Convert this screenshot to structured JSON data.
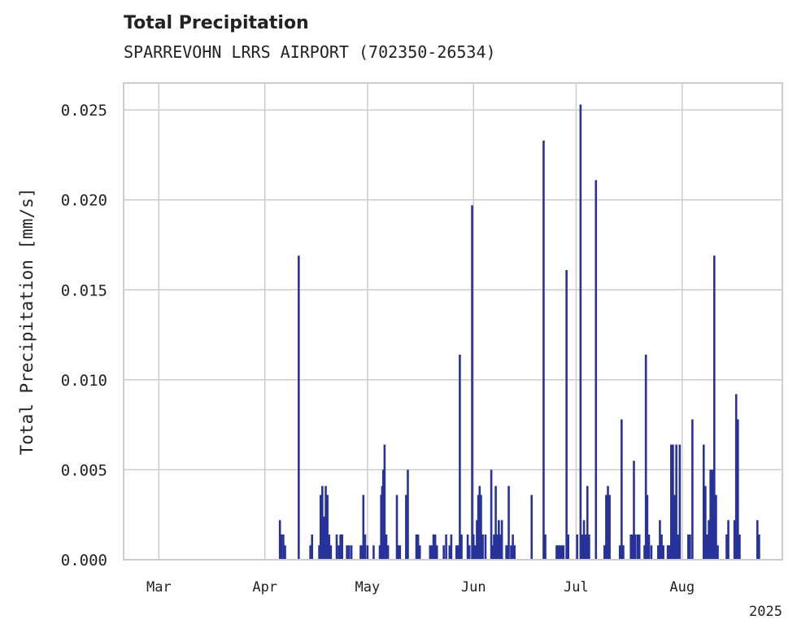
{
  "chart_data": {
    "type": "bar",
    "title": "Total Precipitation",
    "subtitle": "SPARREVOHN LRRS AIRPORT (702350-26534)",
    "xlabel": "",
    "ylabel": "Total Precipitation [mm/s]",
    "year_label": "2025",
    "ylim": [
      0,
      0.0265
    ],
    "yticks": [
      "0.000",
      "0.005",
      "0.010",
      "0.015",
      "0.020",
      "0.025"
    ],
    "ytick_values": [
      0,
      0.005,
      0.01,
      0.015,
      0.02,
      0.025
    ],
    "xlim_days": [
      -10.3,
      182.3
    ],
    "xticks": [
      {
        "label": "Mar",
        "day": 0
      },
      {
        "label": "Apr",
        "day": 31
      },
      {
        "label": "May",
        "day": 61
      },
      {
        "label": "Jun",
        "day": 92
      },
      {
        "label": "Jul",
        "day": 122
      },
      {
        "label": "Aug",
        "day": 153
      }
    ],
    "grid": true,
    "bar_color": "#27339a",
    "series": [
      {
        "name": "Total Precipitation",
        "points": [
          [
            35.4,
            0.0022
          ],
          [
            35.8,
            0.0014
          ],
          [
            36.4,
            0.0014
          ],
          [
            36.9,
            0.0008
          ],
          [
            40.9,
            0.0169
          ],
          [
            44.3,
            0.0008
          ],
          [
            44.8,
            0.0014
          ],
          [
            46.9,
            0.0008
          ],
          [
            47.3,
            0.0036
          ],
          [
            47.8,
            0.0041
          ],
          [
            48.3,
            0.0024
          ],
          [
            48.8,
            0.0041
          ],
          [
            49.3,
            0.0036
          ],
          [
            49.8,
            0.0014
          ],
          [
            50.3,
            0.0008
          ],
          [
            52.0,
            0.0014
          ],
          [
            52.6,
            0.0008
          ],
          [
            53.1,
            0.0014
          ],
          [
            53.6,
            0.0014
          ],
          [
            55.0,
            0.0008
          ],
          [
            55.6,
            0.0008
          ],
          [
            56.3,
            0.0008
          ],
          [
            59.0,
            0.0008
          ],
          [
            59.4,
            0.0008
          ],
          [
            59.8,
            0.0036
          ],
          [
            60.3,
            0.0014
          ],
          [
            61.0,
            0.0008
          ],
          [
            62.8,
            0.0008
          ],
          [
            64.6,
            0.0008
          ],
          [
            65.0,
            0.0036
          ],
          [
            65.3,
            0.0041
          ],
          [
            65.6,
            0.005
          ],
          [
            66.0,
            0.0064
          ],
          [
            66.5,
            0.0014
          ],
          [
            67.0,
            0.0008
          ],
          [
            69.6,
            0.0036
          ],
          [
            70.0,
            0.0008
          ],
          [
            70.5,
            0.0008
          ],
          [
            72.3,
            0.0036
          ],
          [
            72.8,
            0.005
          ],
          [
            75.3,
            0.0014
          ],
          [
            75.8,
            0.0014
          ],
          [
            76.3,
            0.0008
          ],
          [
            79.3,
            0.0008
          ],
          [
            79.8,
            0.0008
          ],
          [
            80.3,
            0.0014
          ],
          [
            80.8,
            0.0014
          ],
          [
            81.3,
            0.0008
          ],
          [
            83.3,
            0.0008
          ],
          [
            84.0,
            0.0014
          ],
          [
            85.0,
            0.0008
          ],
          [
            85.5,
            0.0014
          ],
          [
            87.0,
            0.0008
          ],
          [
            87.5,
            0.0008
          ],
          [
            88.0,
            0.0114
          ],
          [
            88.5,
            0.0014
          ],
          [
            90.3,
            0.0014
          ],
          [
            90.8,
            0.0008
          ],
          [
            91.6,
            0.0197
          ],
          [
            92.0,
            0.0014
          ],
          [
            92.5,
            0.0008
          ],
          [
            93.0,
            0.0022
          ],
          [
            93.4,
            0.0036
          ],
          [
            93.8,
            0.0041
          ],
          [
            94.2,
            0.0036
          ],
          [
            94.7,
            0.0014
          ],
          [
            95.5,
            0.0014
          ],
          [
            97.2,
            0.005
          ],
          [
            97.6,
            0.0008
          ],
          [
            98.0,
            0.0014
          ],
          [
            98.5,
            0.0041
          ],
          [
            99.0,
            0.0014
          ],
          [
            99.4,
            0.0022
          ],
          [
            99.8,
            0.0014
          ],
          [
            100.3,
            0.0022
          ],
          [
            101.6,
            0.0008
          ],
          [
            102.0,
            0.0008
          ],
          [
            102.3,
            0.0041
          ],
          [
            103.0,
            0.0008
          ],
          [
            103.5,
            0.0014
          ],
          [
            104.0,
            0.0008
          ],
          [
            109.0,
            0.0036
          ],
          [
            112.5,
            0.0233
          ],
          [
            113.0,
            0.0014
          ],
          [
            116.3,
            0.0008
          ],
          [
            116.8,
            0.0008
          ],
          [
            117.3,
            0.0008
          ],
          [
            117.8,
            0.0008
          ],
          [
            118.3,
            0.0008
          ],
          [
            119.2,
            0.0161
          ],
          [
            119.7,
            0.0014
          ],
          [
            122.3,
            0.0014
          ],
          [
            123.3,
            0.0253
          ],
          [
            123.8,
            0.0014
          ],
          [
            124.3,
            0.0022
          ],
          [
            124.8,
            0.0014
          ],
          [
            125.3,
            0.0041
          ],
          [
            125.8,
            0.0014
          ],
          [
            127.8,
            0.0211
          ],
          [
            130.3,
            0.0008
          ],
          [
            130.8,
            0.0036
          ],
          [
            131.3,
            0.0041
          ],
          [
            131.8,
            0.0036
          ],
          [
            134.8,
            0.0008
          ],
          [
            135.3,
            0.0078
          ],
          [
            135.8,
            0.0008
          ],
          [
            138.0,
            0.0014
          ],
          [
            138.5,
            0.0014
          ],
          [
            138.9,
            0.0055
          ],
          [
            139.3,
            0.0014
          ],
          [
            140.0,
            0.0014
          ],
          [
            140.5,
            0.0014
          ],
          [
            142.0,
            0.0008
          ],
          [
            142.4,
            0.0114
          ],
          [
            142.8,
            0.0036
          ],
          [
            143.3,
            0.0014
          ],
          [
            144.0,
            0.0008
          ],
          [
            146.0,
            0.0008
          ],
          [
            146.5,
            0.0022
          ],
          [
            147.0,
            0.0014
          ],
          [
            147.5,
            0.0008
          ],
          [
            148.8,
            0.0008
          ],
          [
            149.3,
            0.0008
          ],
          [
            149.8,
            0.0064
          ],
          [
            150.3,
            0.0064
          ],
          [
            150.8,
            0.0036
          ],
          [
            151.3,
            0.0064
          ],
          [
            151.8,
            0.0014
          ],
          [
            152.3,
            0.0064
          ],
          [
            154.8,
            0.0014
          ],
          [
            155.3,
            0.0014
          ],
          [
            156.0,
            0.0078
          ],
          [
            159.3,
            0.0064
          ],
          [
            159.8,
            0.0041
          ],
          [
            160.3,
            0.0014
          ],
          [
            160.8,
            0.0022
          ],
          [
            161.3,
            0.005
          ],
          [
            161.8,
            0.005
          ],
          [
            162.4,
            0.0169
          ],
          [
            162.9,
            0.0036
          ],
          [
            163.4,
            0.0008
          ],
          [
            166.0,
            0.0014
          ],
          [
            166.5,
            0.0022
          ],
          [
            168.3,
            0.0022
          ],
          [
            168.8,
            0.0092
          ],
          [
            169.3,
            0.0078
          ],
          [
            169.8,
            0.0014
          ],
          [
            175.0,
            0.0022
          ],
          [
            175.5,
            0.0014
          ]
        ]
      }
    ]
  }
}
